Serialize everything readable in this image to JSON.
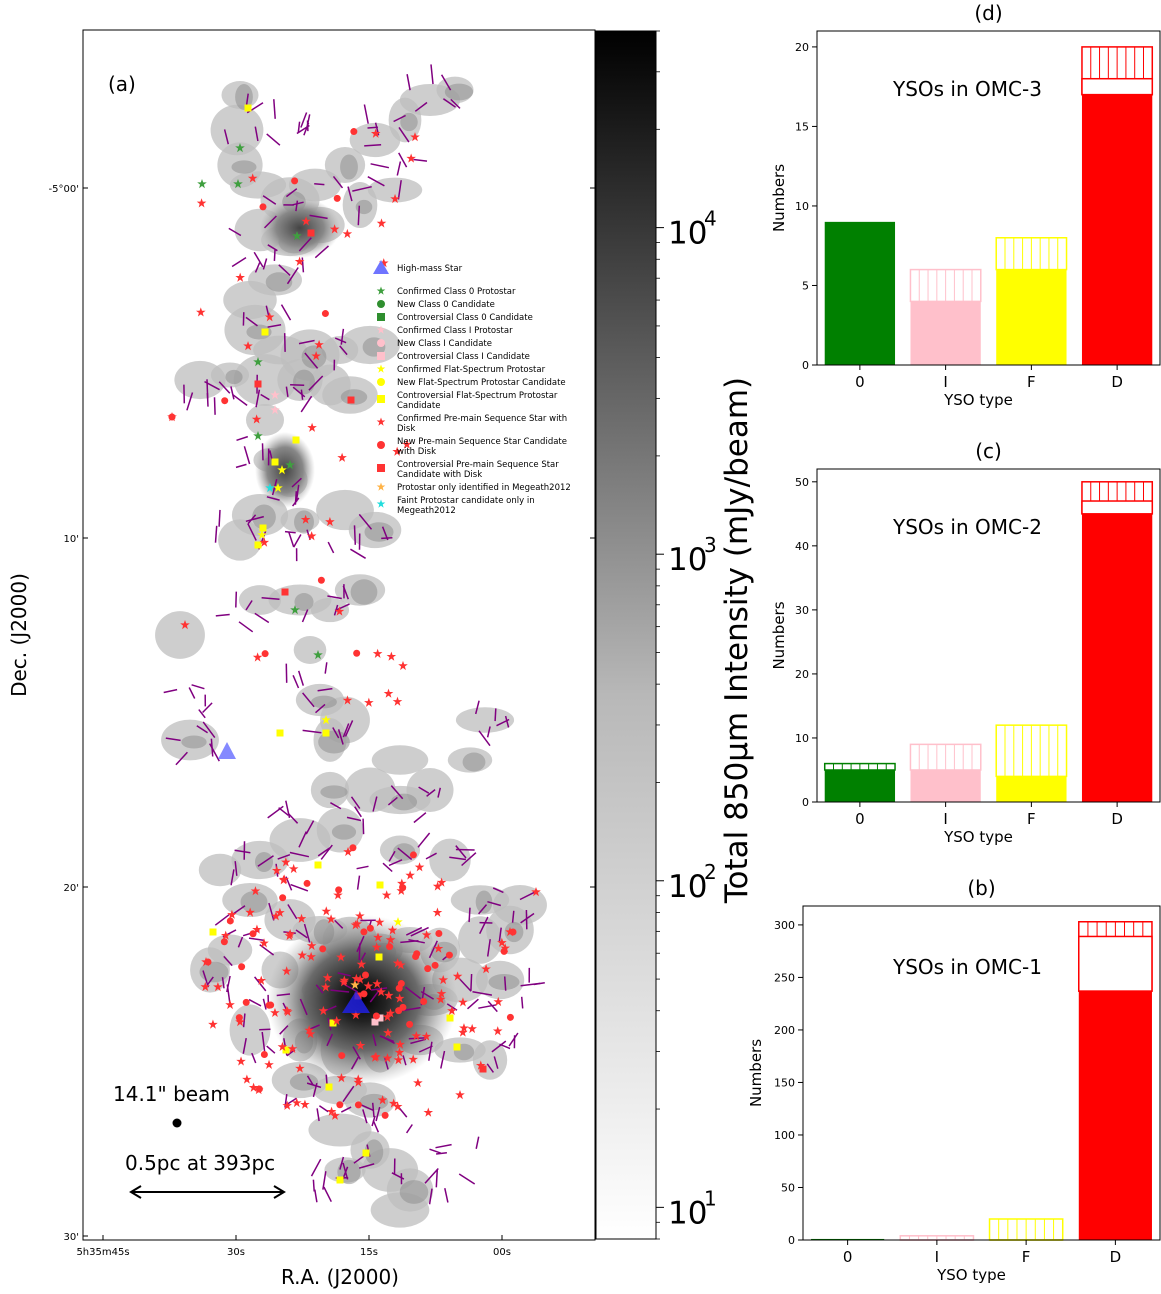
{
  "map": {
    "panel_label": "(a)",
    "xlabel": "R.A. (J2000)",
    "ylabel": "Dec. (J2000)",
    "ra_ticks": [
      {
        "text": "5h35m45s"
      },
      {
        "text": "30s"
      },
      {
        "text": "15s"
      },
      {
        "text": "00s"
      }
    ],
    "dec_ticks": [
      {
        "text": "-5°00'"
      },
      {
        "text": "10'"
      },
      {
        "text": "20'"
      },
      {
        "text": "30'"
      }
    ],
    "beam_label": "14.1\" beam",
    "scalebar_label": "0.5pc at 393pc",
    "colorbar": {
      "label": "Total 850μm Intensity (mJy/beam)",
      "ticks": [
        {
          "base": "10",
          "exp": "4"
        },
        {
          "base": "10",
          "exp": "3"
        },
        {
          "base": "10",
          "exp": "2"
        },
        {
          "base": "10",
          "exp": "1"
        }
      ],
      "scale": "log",
      "range": [
        8,
        40000
      ],
      "colormap": "white-to-black"
    },
    "legend": [
      {
        "label": "High-mass Star",
        "marker": "triangle",
        "color": "#6f74ff"
      },
      {
        "label": "Confirmed Class 0 Protostar",
        "marker": "star",
        "color": "#3f9f3f"
      },
      {
        "label": "New Class 0 Candidate",
        "marker": "circle",
        "color": "#2f8f2f"
      },
      {
        "label": "Controversial Class 0 Candidate",
        "marker": "square",
        "color": "#2f8f2f"
      },
      {
        "label": "Confirmed Class I Protostar",
        "marker": "star",
        "color": "#ffc0cb"
      },
      {
        "label": "New Class I Candidate",
        "marker": "circle",
        "color": "#ffc0cb"
      },
      {
        "label": "Controversial Class I Candidate",
        "marker": "square",
        "color": "#ffc0cb"
      },
      {
        "label": "Confirmed Flat-Spectrum Protostar",
        "marker": "star",
        "color": "#ffff00"
      },
      {
        "label": "New Flat-Spectrum Protostar Candidate",
        "marker": "circle",
        "color": "#ffff00"
      },
      {
        "label": "Controversial Flat-Spectrum Protostar Candidate",
        "marker": "square",
        "color": "#ffff00"
      },
      {
        "label": "Confirmed Pre-main Sequence Star with Disk",
        "marker": "star",
        "color": "#ff3333"
      },
      {
        "label": "New Pre-main Sequence Star Candidate with Disk",
        "marker": "circle",
        "color": "#ff3333"
      },
      {
        "label": "Controversial Pre-main Sequence Star Candidate with Disk",
        "marker": "square",
        "color": "#ff3333"
      },
      {
        "label": "Protostar only identified in Megeath2012",
        "marker": "star",
        "color": "#ffb347"
      },
      {
        "label": "Faint Protostar candidate only in Megeath2012",
        "marker": "star",
        "color": "#22dddd"
      }
    ]
  },
  "chart_data": [
    {
      "panel": "(d)",
      "type": "bar",
      "title": "(d)",
      "annotation": "YSOs in OMC-3",
      "xlabel": "YSO type",
      "ylabel": "Numbers",
      "categories": [
        "0",
        "I",
        "F",
        "D"
      ],
      "colors": [
        "#008000",
        "#ffc0cb",
        "#ffff00",
        "#ff0000"
      ],
      "series": [
        {
          "values": [
            9,
            4,
            6,
            17
          ]
        },
        {
          "values": [
            0,
            2,
            2,
            3
          ]
        }
      ],
      "hatch_dividers": [
        [],
        [],
        [],
        [
          18
        ]
      ],
      "ylim": [
        0,
        21
      ],
      "yticks": [
        0,
        5,
        10,
        15,
        20
      ]
    },
    {
      "panel": "(c)",
      "type": "bar",
      "title": "(c)",
      "annotation": "YSOs in OMC-2",
      "xlabel": "YSO type",
      "ylabel": "Numbers",
      "categories": [
        "0",
        "I",
        "F",
        "D"
      ],
      "colors": [
        "#008000",
        "#ffc0cb",
        "#ffff00",
        "#ff0000"
      ],
      "series": [
        {
          "values": [
            5,
            5,
            4,
            45
          ]
        },
        {
          "values": [
            1,
            4,
            8,
            5
          ]
        }
      ],
      "hatch_dividers": [
        [],
        [],
        [],
        [
          47
        ]
      ],
      "ylim": [
        0,
        52
      ],
      "yticks": [
        0,
        10,
        20,
        30,
        40,
        50
      ]
    },
    {
      "panel": "(b)",
      "type": "bar",
      "title": "(b)",
      "annotation": "YSOs in OMC-1",
      "xlabel": "YSO type",
      "ylabel": "Numbers",
      "categories": [
        "0",
        "I",
        "F",
        "D"
      ],
      "colors": [
        "#008000",
        "#ffc0cb",
        "#ffff00",
        "#ff0000"
      ],
      "series": [
        {
          "values": [
            1,
            0,
            0,
            237
          ]
        },
        {
          "values": [
            0,
            4,
            20,
            66
          ]
        }
      ],
      "hatch_dividers": [
        [],
        [],
        [],
        [
          289
        ]
      ],
      "ylim": [
        0,
        318
      ],
      "yticks": [
        0,
        50,
        100,
        150,
        200,
        250,
        300
      ]
    }
  ]
}
